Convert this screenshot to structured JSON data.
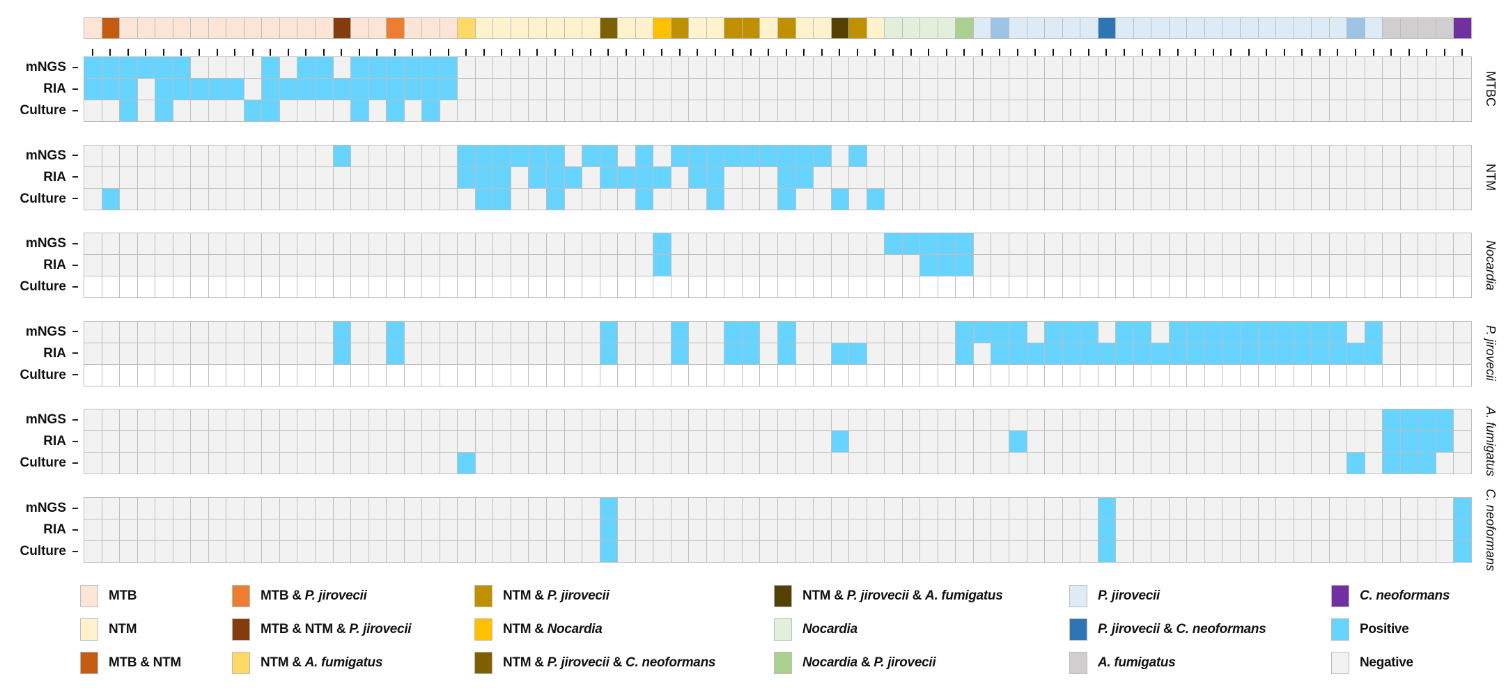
{
  "chart_data": {
    "type": "heatmap",
    "n_samples": 78,
    "categories": {
      "MTB": {
        "label": "MTB",
        "color": "#fce4d6"
      },
      "NTM": {
        "label": "NTM",
        "color": "#fff2cc"
      },
      "MTB_NTM": {
        "label": "MTB & NTM",
        "color": "#c55a11"
      },
      "MTB_PJ": {
        "label": "MTB & P. jirovecii",
        "color": "#ed7d31"
      },
      "MTB_NTM_PJ": {
        "label": "MTB & NTM & P. jirovecii",
        "color": "#843c0c"
      },
      "NTM_AF": {
        "label": "NTM & A. fumigatus",
        "color": "#ffd966"
      },
      "NTM_PJ": {
        "label": "NTM & P. jirovecii",
        "color": "#bf9000"
      },
      "NTM_NOC": {
        "label": "NTM & Nocardia",
        "color": "#ffc000"
      },
      "NTM_PJ_CN": {
        "label": "NTM & P. jirovecii & C. neoformans",
        "color": "#7f6000"
      },
      "NTM_PJ_AF": {
        "label": "NTM & P. jirovecii & A. fumigatus",
        "color": "#544000"
      },
      "NOC": {
        "label": "Nocardia",
        "color": "#e2efda"
      },
      "NOC_PJ": {
        "label": "Nocardia & P. jirovecii",
        "color": "#a9d08e"
      },
      "PJ": {
        "label": "P. jirovecii",
        "color": "#ddebf7"
      },
      "PJ_CN": {
        "label": "P. jirovecii & C. neoformans",
        "color": "#2e75b6"
      },
      "AF": {
        "label": "A. fumigatus",
        "color": "#d0cece"
      },
      "CN": {
        "label": "C. neoformans",
        "color": "#7030a0"
      },
      "PJX": {
        "label": "",
        "color": "#9dc3e6"
      }
    },
    "sample_annotation": [
      "MTB",
      "MTB_NTM",
      "MTB",
      "MTB",
      "MTB",
      "MTB",
      "MTB",
      "MTB",
      "MTB",
      "MTB",
      "MTB",
      "MTB",
      "MTB",
      "MTB",
      "MTB_NTM_PJ",
      "MTB",
      "MTB",
      "MTB_PJ",
      "MTB",
      "MTB",
      "MTB",
      "NTM_AF",
      "NTM",
      "NTM",
      "NTM",
      "NTM",
      "NTM",
      "NTM",
      "NTM",
      "NTM_PJ_CN",
      "NTM",
      "NTM",
      "NTM_NOC",
      "NTM_PJ",
      "NTM",
      "NTM",
      "NTM_PJ",
      "NTM_PJ",
      "NTM",
      "NTM_PJ",
      "NTM",
      "NTM",
      "NTM_PJ_AF",
      "NTM_PJ",
      "NTM",
      "NOC",
      "NOC",
      "NOC",
      "NOC",
      "NOC_PJ",
      "PJ",
      "PJX",
      "PJ",
      "PJ",
      "PJ",
      "PJ",
      "PJ",
      "PJ_CN",
      "PJ",
      "PJ",
      "PJ",
      "PJ",
      "PJ",
      "PJ",
      "PJ",
      "PJ",
      "PJ",
      "PJ",
      "PJ",
      "PJ",
      "PJ",
      "PJX",
      "PJ",
      "AF",
      "AF",
      "AF",
      "AF",
      "CN"
    ],
    "panels": [
      {
        "pathogen": "MTBC",
        "italic": false,
        "rows": [
          {
            "method": "mNGS",
            "positive_samples": [
              1,
              2,
              3,
              4,
              5,
              6,
              11,
              13,
              14,
              16,
              17,
              18,
              19,
              20,
              21
            ]
          },
          {
            "method": "RIA",
            "positive_samples": [
              1,
              2,
              3,
              5,
              6,
              7,
              8,
              9,
              11,
              12,
              13,
              14,
              15,
              16,
              17,
              18,
              19,
              20,
              21
            ]
          },
          {
            "method": "Culture",
            "positive_samples": [
              3,
              5,
              10,
              11,
              16,
              18,
              20
            ]
          }
        ]
      },
      {
        "pathogen": "NTM",
        "italic": false,
        "rows": [
          {
            "method": "mNGS",
            "positive_samples": [
              15,
              22,
              23,
              24,
              25,
              26,
              27,
              29,
              30,
              32,
              34,
              35,
              36,
              37,
              38,
              39,
              40,
              41,
              42,
              44
            ]
          },
          {
            "method": "RIA",
            "positive_samples": [
              22,
              23,
              24,
              26,
              27,
              28,
              30,
              31,
              32,
              33,
              35,
              36,
              40,
              41
            ]
          },
          {
            "method": "Culture",
            "positive_samples": [
              2,
              23,
              24,
              27,
              32,
              36,
              40,
              43,
              45
            ]
          }
        ]
      },
      {
        "pathogen": "Nocardia",
        "italic": true,
        "rows": [
          {
            "method": "mNGS",
            "positive_samples": [
              33,
              46,
              47,
              48,
              49,
              50
            ]
          },
          {
            "method": "RIA",
            "positive_samples": [
              33,
              48,
              49,
              50
            ]
          },
          {
            "method": "Culture",
            "positive_samples": [],
            "not_tested": true
          }
        ]
      },
      {
        "pathogen": "P. jirovecii",
        "italic": true,
        "rows": [
          {
            "method": "mNGS",
            "positive_samples": [
              15,
              18,
              30,
              34,
              37,
              38,
              40,
              50,
              51,
              52,
              53,
              55,
              56,
              57,
              59,
              60,
              62,
              63,
              64,
              65,
              66,
              67,
              68,
              69,
              70,
              71,
              73
            ]
          },
          {
            "method": "RIA",
            "positive_samples": [
              15,
              18,
              30,
              34,
              37,
              38,
              40,
              43,
              44,
              50,
              52,
              53,
              54,
              55,
              56,
              57,
              58,
              59,
              60,
              61,
              62,
              63,
              64,
              65,
              66,
              67,
              68,
              69,
              70,
              71,
              72,
              73
            ]
          },
          {
            "method": "Culture",
            "positive_samples": [],
            "not_tested": true
          }
        ]
      },
      {
        "pathogen": "A. fumigatus",
        "italic": true,
        "rows": [
          {
            "method": "mNGS",
            "positive_samples": [
              74,
              75,
              76,
              77
            ]
          },
          {
            "method": "RIA",
            "positive_samples": [
              43,
              53,
              74,
              75,
              76,
              77
            ]
          },
          {
            "method": "Culture",
            "positive_samples": [
              22,
              72,
              74,
              75,
              76
            ]
          }
        ]
      },
      {
        "pathogen": "C. neoformans",
        "italic": true,
        "rows": [
          {
            "method": "mNGS",
            "positive_samples": [
              30,
              58,
              78
            ]
          },
          {
            "method": "RIA",
            "positive_samples": [
              30,
              58,
              78
            ]
          },
          {
            "method": "Culture",
            "positive_samples": [
              30,
              58,
              78
            ]
          }
        ]
      }
    ],
    "result_colors": {
      "positive": "#66d4fe",
      "negative": "#f2f2f2",
      "not_tested": "#ffffff"
    },
    "legend": {
      "placement": "bottom",
      "items": [
        {
          "key": "MTB",
          "parts": [
            [
              "MTB",
              false
            ]
          ]
        },
        {
          "key": "NTM",
          "parts": [
            [
              "NTM",
              false
            ]
          ]
        },
        {
          "key": "MTB_NTM",
          "parts": [
            [
              "MTB & NTM",
              false
            ]
          ]
        },
        {
          "key": "MTB_PJ",
          "parts": [
            [
              "MTB & ",
              false
            ],
            [
              "P. jirovecii",
              true
            ]
          ]
        },
        {
          "key": "MTB_NTM_PJ",
          "parts": [
            [
              "MTB & NTM & ",
              false
            ],
            [
              "P. jirovecii",
              true
            ]
          ]
        },
        {
          "key": "NTM_AF",
          "parts": [
            [
              "NTM & ",
              false
            ],
            [
              "A. fumigatus",
              true
            ]
          ]
        },
        {
          "key": "NTM_PJ",
          "parts": [
            [
              "NTM & ",
              false
            ],
            [
              "P. jirovecii",
              true
            ]
          ]
        },
        {
          "key": "NTM_NOC",
          "parts": [
            [
              "NTM & ",
              false
            ],
            [
              "Nocardia",
              true
            ]
          ]
        },
        {
          "key": "NTM_PJ_CN",
          "parts": [
            [
              "NTM & ",
              false
            ],
            [
              "P. jirovecii",
              true
            ],
            [
              " & ",
              false
            ],
            [
              "C. neoformans",
              true
            ]
          ]
        },
        {
          "key": "NTM_PJ_AF",
          "parts": [
            [
              "NTM & ",
              false
            ],
            [
              "P. jirovecii",
              true
            ],
            [
              " & ",
              false
            ],
            [
              "A. fumigatus",
              true
            ]
          ]
        },
        {
          "key": "NOC",
          "parts": [
            [
              "Nocardia",
              true
            ]
          ]
        },
        {
          "key": "NOC_PJ",
          "parts": [
            [
              "Nocardia",
              true
            ],
            [
              " & ",
              false
            ],
            [
              "P. jirovecii",
              true
            ]
          ]
        },
        {
          "key": "PJ",
          "parts": [
            [
              "P. jirovecii",
              true
            ]
          ]
        },
        {
          "key": "PJ_CN",
          "parts": [
            [
              "P. jirovecii",
              true
            ],
            [
              " & ",
              false
            ],
            [
              "C. neoformans",
              true
            ]
          ]
        },
        {
          "key": "AF",
          "parts": [
            [
              "A. fumigatus",
              true
            ]
          ]
        },
        {
          "key": "CN",
          "parts": [
            [
              "C. neoformans",
              true
            ]
          ]
        },
        {
          "key": "positive",
          "parts": [
            [
              "Positive",
              false
            ]
          ]
        },
        {
          "key": "negative",
          "parts": [
            [
              "Negative",
              false
            ]
          ]
        }
      ]
    }
  }
}
